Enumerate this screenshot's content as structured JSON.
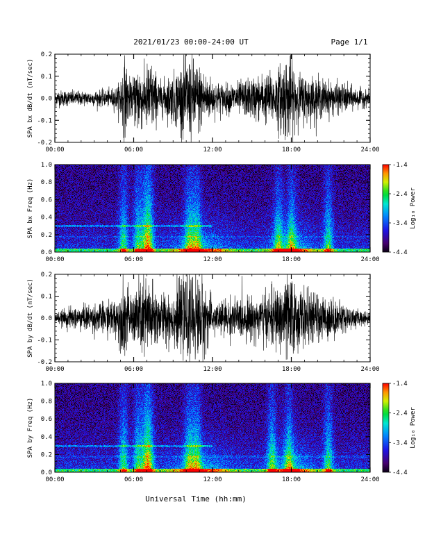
{
  "header": {
    "title": "2021/01/23  00:00-24:00 UT",
    "page": "Page 1/1"
  },
  "x_axis": {
    "label": "Universal Time (hh:mm)",
    "ticks": [
      "00:00",
      "06:00",
      "12:00",
      "18:00",
      "24:00"
    ],
    "range_hours": [
      0,
      24
    ]
  },
  "colorbar": {
    "label": "Log₁₀ Power",
    "ticks": [
      "-1.4",
      "-2.4",
      "-3.4",
      "-4.4"
    ],
    "range": [
      -4.4,
      -1.4
    ]
  },
  "chart_data": [
    {
      "type": "line",
      "ylabel": "SPA bx dB/dt (nT/sec)",
      "ylim": [
        -0.2,
        0.2
      ],
      "yticks": [
        "0.2",
        "0.1",
        "0.0",
        "-0.1",
        "-0.2"
      ],
      "x_unit": "hours UT",
      "envelope": {
        "x": [
          0,
          2,
          4,
          4.8,
          5.3,
          5.8,
          6.3,
          6.8,
          7.2,
          8.0,
          9.0,
          10.0,
          10.5,
          11.2,
          12.0,
          13.0,
          14.0,
          15.0,
          16.0,
          16.8,
          17.5,
          18.0,
          18.5,
          19.5,
          21.0,
          22.0,
          23.0,
          24.0
        ],
        "amplitude": [
          0.04,
          0.035,
          0.04,
          0.06,
          0.2,
          0.07,
          0.2,
          0.12,
          0.2,
          0.08,
          0.12,
          0.2,
          0.2,
          0.15,
          0.09,
          0.07,
          0.08,
          0.1,
          0.12,
          0.13,
          0.2,
          0.2,
          0.12,
          0.11,
          0.08,
          0.07,
          0.05,
          0.035
        ]
      }
    },
    {
      "type": "heatmap",
      "ylabel": "SPA bx Freq (Hz)",
      "ylim": [
        0.0,
        1.0
      ],
      "yticks": [
        "1.0",
        "0.8",
        "0.6",
        "0.4",
        "0.2",
        "0.0"
      ],
      "value_range": [
        -4.4,
        -1.4
      ],
      "bursts_hours": [
        5.2,
        6.3,
        6.9,
        7.2,
        10.2,
        10.8,
        17.0,
        18.0,
        20.8
      ],
      "persistent_line_hz": 0.3
    },
    {
      "type": "line",
      "ylabel": "SPA by dB/dt (nT/sec)",
      "ylim": [
        -0.2,
        0.2
      ],
      "yticks": [
        "0.2",
        "0.1",
        "0.0",
        "-0.1",
        "-0.2"
      ],
      "x_unit": "hours UT",
      "envelope": {
        "x": [
          0,
          1.0,
          2.0,
          3.0,
          4.0,
          4.8,
          5.3,
          5.8,
          6.3,
          6.8,
          7.2,
          8.0,
          9.0,
          10.0,
          10.5,
          11.2,
          12.0,
          13.0,
          14.0,
          15.0,
          16.0,
          17.0,
          17.5,
          18.0,
          18.5,
          19.5,
          21.0,
          22.0,
          23.0,
          24.0
        ],
        "amplitude": [
          0.02,
          0.05,
          0.06,
          0.07,
          0.08,
          0.1,
          0.2,
          0.09,
          0.2,
          0.2,
          0.2,
          0.12,
          0.13,
          0.2,
          0.2,
          0.2,
          0.08,
          0.09,
          0.1,
          0.1,
          0.12,
          0.15,
          0.2,
          0.2,
          0.15,
          0.12,
          0.1,
          0.07,
          0.04,
          0.03
        ]
      }
    },
    {
      "type": "heatmap",
      "ylabel": "SPA by Freq (Hz)",
      "ylim": [
        0.0,
        1.0
      ],
      "yticks": [
        "1.0",
        "0.8",
        "0.6",
        "0.4",
        "0.2",
        "0.0"
      ],
      "value_range": [
        -4.4,
        -1.4
      ],
      "bursts_hours": [
        5.2,
        6.3,
        6.9,
        7.2,
        10.2,
        10.8,
        16.5,
        17.8,
        20.8
      ],
      "persistent_line_hz": 0.3
    }
  ]
}
